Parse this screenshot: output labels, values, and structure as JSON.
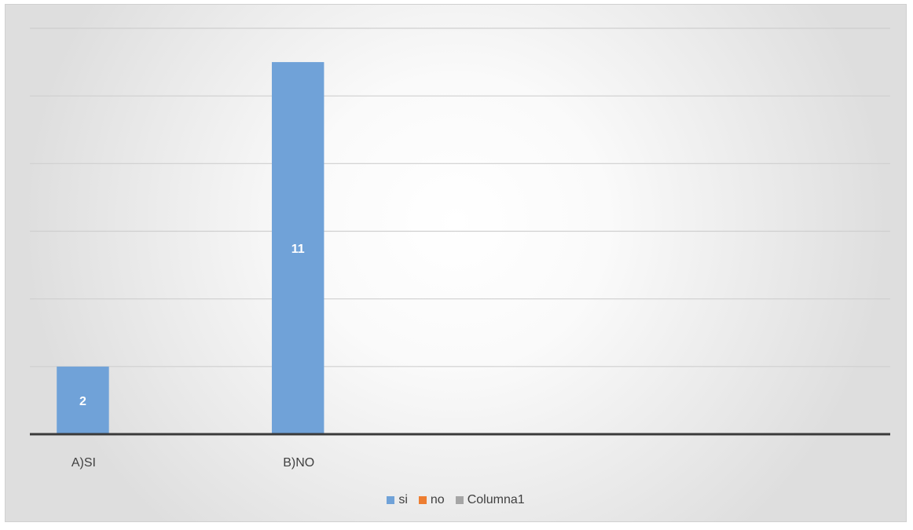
{
  "chart_data": {
    "type": "bar",
    "categories": [
      "A)SI",
      "B)NO"
    ],
    "series": [
      {
        "name": "si",
        "values": [
          2,
          11
        ],
        "color": "#70a2d8"
      },
      {
        "name": "no",
        "values": [
          null,
          null
        ],
        "color": "#ed7d31"
      },
      {
        "name": "Columna1",
        "values": [
          null,
          null
        ],
        "color": "#a5a5a5"
      }
    ],
    "ylim": [
      0,
      12
    ],
    "grid": true,
    "legend_position": "bottom"
  }
}
